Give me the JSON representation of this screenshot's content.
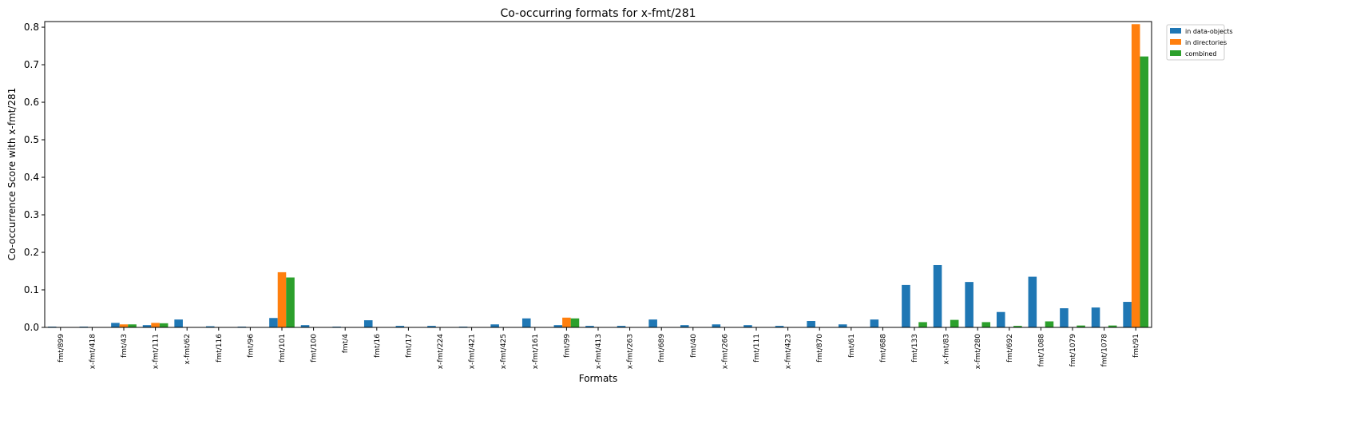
{
  "chart_data": {
    "type": "bar",
    "title": "Co-occurring formats for x-fmt/281",
    "xlabel": "Formats",
    "ylabel": "Co-occurrence Score with x-fmt/281",
    "ylim": [
      0,
      0.815
    ],
    "yticks": [
      "0.0",
      "0.1",
      "0.2",
      "0.3",
      "0.4",
      "0.5",
      "0.6",
      "0.7",
      "0.8"
    ],
    "legend_position": "outside top-right",
    "categories": [
      "fmt/899",
      "x-fmt/418",
      "fmt/43",
      "x-fmt/111",
      "x-fmt/62",
      "fmt/116",
      "fmt/96",
      "fmt/101",
      "fmt/100",
      "fmt/4",
      "fmt/16",
      "fmt/17",
      "x-fmt/224",
      "x-fmt/421",
      "x-fmt/425",
      "x-fmt/161",
      "fmt/99",
      "x-fmt/413",
      "x-fmt/263",
      "fmt/689",
      "fmt/40",
      "x-fmt/266",
      "fmt/111",
      "x-fmt/423",
      "fmt/870",
      "fmt/61",
      "fmt/688",
      "fmt/133",
      "x-fmt/83",
      "x-fmt/280",
      "fmt/692",
      "fmt/1088",
      "fmt/1079",
      "fmt/1078",
      "fmt/91"
    ],
    "series": [
      {
        "name": "in data-objects",
        "color": "#1f77b4",
        "values": [
          0.002,
          0.002,
          0.012,
          0.006,
          0.021,
          0.003,
          0.002,
          0.025,
          0.006,
          0.002,
          0.019,
          0.004,
          0.004,
          0.002,
          0.008,
          0.024,
          0.006,
          0.004,
          0.004,
          0.021,
          0.006,
          0.008,
          0.006,
          0.004,
          0.017,
          0.008,
          0.021,
          0.113,
          0.166,
          0.121,
          0.041,
          0.135,
          0.051,
          0.053,
          0.068
        ]
      },
      {
        "name": "in directories",
        "color": "#ff7f0e",
        "values": [
          0,
          0,
          0.008,
          0.012,
          0,
          0,
          0,
          0.147,
          0,
          0,
          0,
          0,
          0,
          0,
          0,
          0,
          0.026,
          0,
          0,
          0,
          0,
          0,
          0,
          0,
          0,
          0,
          0,
          0,
          0,
          0,
          0,
          0,
          0,
          0,
          0.808
        ]
      },
      {
        "name": "combined",
        "color": "#2ca02c",
        "values": [
          0,
          0,
          0.008,
          0.011,
          0.001,
          0,
          0,
          0.133,
          0,
          0,
          0.001,
          0,
          0,
          0,
          0,
          0.001,
          0.024,
          0,
          0,
          0.001,
          0,
          0,
          0,
          0,
          0.001,
          0,
          0.001,
          0.014,
          0.02,
          0.014,
          0.004,
          0.016,
          0.005,
          0.005,
          0.722
        ]
      }
    ]
  }
}
